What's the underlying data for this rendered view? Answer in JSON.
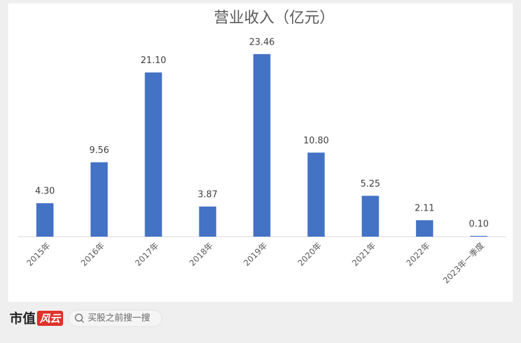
{
  "chart_data": {
    "type": "bar",
    "title": "营业收入（亿元）",
    "categories": [
      "2015年",
      "2016年",
      "2017年",
      "2018年",
      "2019年",
      "2020年",
      "2021年",
      "2022年",
      "2023年一季度"
    ],
    "values": [
      4.3,
      9.56,
      21.1,
      3.87,
      23.46,
      10.8,
      5.25,
      2.11,
      0.1
    ],
    "value_labels": [
      "4.30",
      "9.56",
      "21.10",
      "3.87",
      "23.46",
      "10.80",
      "5.25",
      "2.11",
      "0.10"
    ],
    "color": "#4472c4",
    "ylim": [
      0,
      26
    ]
  },
  "footer": {
    "brand": "市值",
    "logo": "风云",
    "search_placeholder": "买股之前搜一搜"
  }
}
